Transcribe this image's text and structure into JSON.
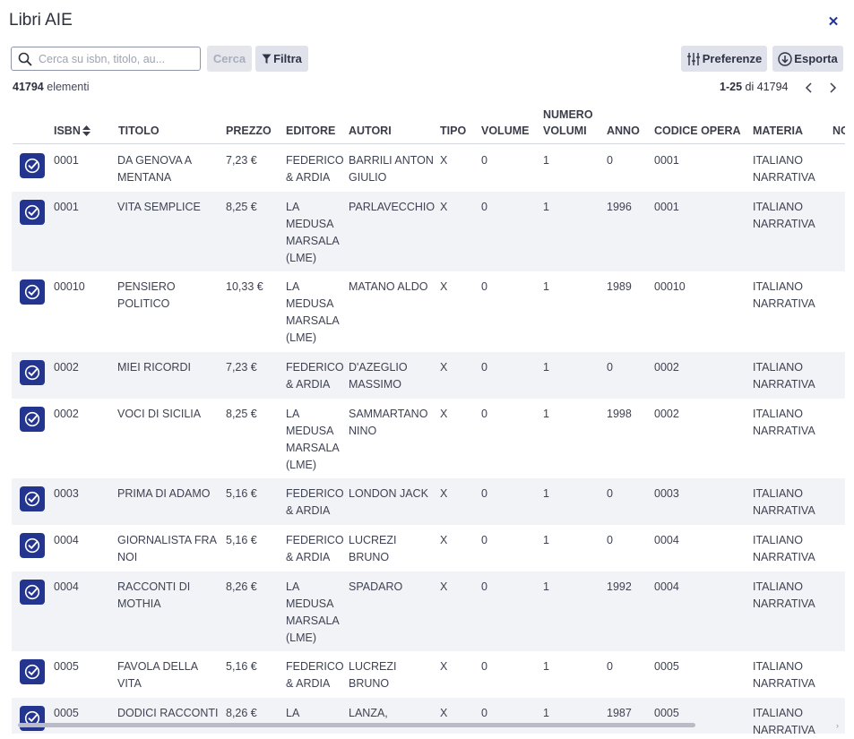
{
  "window": {
    "title": "Libri AIE"
  },
  "search": {
    "placeholder": "Cerca su isbn, titolo, au..."
  },
  "toolbar": {
    "cerca": "Cerca",
    "filtra": "Filtra",
    "preferenze": "Preferenze",
    "esporta": "Esporta"
  },
  "summary": {
    "count": "41794",
    "count_label": "elementi",
    "range": "1-25",
    "range_of": "di 41794"
  },
  "columns": [
    "ISBN",
    "TITOLO",
    "PREZZO",
    "EDITORE",
    "AUTORI",
    "TIPO",
    "VOLUME",
    "NUMERO VOLUMI",
    "ANNO",
    "CODICE OPERA",
    "MATERIA",
    "NO"
  ],
  "rows": [
    {
      "isbn": "0001",
      "titolo": "DA GENOVA A MENTANA",
      "prezzo": "7,23 €",
      "editore": "FEDERICO & ARDIA",
      "autori": "BARRILI ANTON GIULIO",
      "tipo": "X",
      "volume": "0",
      "numero_volumi": "1",
      "anno": "0",
      "codice_opera": "0001",
      "materia": "ITALIANO NARRATIVA"
    },
    {
      "isbn": "0001",
      "titolo": "VITA SEMPLICE",
      "prezzo": "8,25 €",
      "editore": "LA MEDUSA MARSALA (LME)",
      "autori": "PARLAVECCHIO",
      "tipo": "X",
      "volume": "0",
      "numero_volumi": "1",
      "anno": "1996",
      "codice_opera": "0001",
      "materia": "ITALIANO NARRATIVA"
    },
    {
      "isbn": "00010",
      "titolo": "PENSIERO POLITICO",
      "prezzo": "10,33 €",
      "editore": "LA MEDUSA MARSALA (LME)",
      "autori": "MATANO ALDO",
      "tipo": "X",
      "volume": "0",
      "numero_volumi": "1",
      "anno": "1989",
      "codice_opera": "00010",
      "materia": "ITALIANO NARRATIVA"
    },
    {
      "isbn": "0002",
      "titolo": "MIEI RICORDI",
      "prezzo": "7,23 €",
      "editore": "FEDERICO & ARDIA",
      "autori": "D'AZEGLIO MASSIMO",
      "tipo": "X",
      "volume": "0",
      "numero_volumi": "1",
      "anno": "0",
      "codice_opera": "0002",
      "materia": "ITALIANO NARRATIVA"
    },
    {
      "isbn": "0002",
      "titolo": "VOCI DI SICILIA",
      "prezzo": "8,25 €",
      "editore": "LA MEDUSA MARSALA (LME)",
      "autori": "SAMMARTANO NINO",
      "tipo": "X",
      "volume": "0",
      "numero_volumi": "1",
      "anno": "1998",
      "codice_opera": "0002",
      "materia": "ITALIANO NARRATIVA"
    },
    {
      "isbn": "0003",
      "titolo": "PRIMA DI ADAMO",
      "prezzo": "5,16 €",
      "editore": "FEDERICO & ARDIA",
      "autori": "LONDON JACK",
      "tipo": "X",
      "volume": "0",
      "numero_volumi": "1",
      "anno": "0",
      "codice_opera": "0003",
      "materia": "ITALIANO NARRATIVA"
    },
    {
      "isbn": "0004",
      "titolo": "GIORNALISTA FRA NOI",
      "prezzo": "5,16 €",
      "editore": "FEDERICO & ARDIA",
      "autori": "LUCREZI BRUNO",
      "tipo": "X",
      "volume": "0",
      "numero_volumi": "1",
      "anno": "0",
      "codice_opera": "0004",
      "materia": "ITALIANO NARRATIVA"
    },
    {
      "isbn": "0004",
      "titolo": "RACCONTI DI MOTHIA",
      "prezzo": "8,26 €",
      "editore": "LA MEDUSA MARSALA (LME)",
      "autori": "SPADARO",
      "tipo": "X",
      "volume": "0",
      "numero_volumi": "1",
      "anno": "1992",
      "codice_opera": "0004",
      "materia": "ITALIANO NARRATIVA"
    },
    {
      "isbn": "0005",
      "titolo": "FAVOLA DELLA VITA",
      "prezzo": "5,16 €",
      "editore": "FEDERICO & ARDIA",
      "autori": "LUCREZI BRUNO",
      "tipo": "X",
      "volume": "0",
      "numero_volumi": "1",
      "anno": "0",
      "codice_opera": "0005",
      "materia": "ITALIANO NARRATIVA"
    },
    {
      "isbn": "0005",
      "titolo": "DODICI RACCONTI",
      "prezzo": "8,26 €",
      "editore": "LA",
      "autori": "LANZA,",
      "tipo": "X",
      "volume": "0",
      "numero_volumi": "1",
      "anno": "1987",
      "codice_opera": "0005",
      "materia": "ITALIANO NARRATIVA"
    }
  ],
  "colors": {
    "accent": "#23358f",
    "row_alt": "#f2f3f6",
    "button_bg": "#dfe2ea"
  },
  "icons": {
    "search": "search-icon",
    "close": "close-icon",
    "filter": "filter-icon",
    "preferences": "sliders-icon",
    "export": "download-icon",
    "sort": "sort-icon",
    "check": "check-icon"
  }
}
